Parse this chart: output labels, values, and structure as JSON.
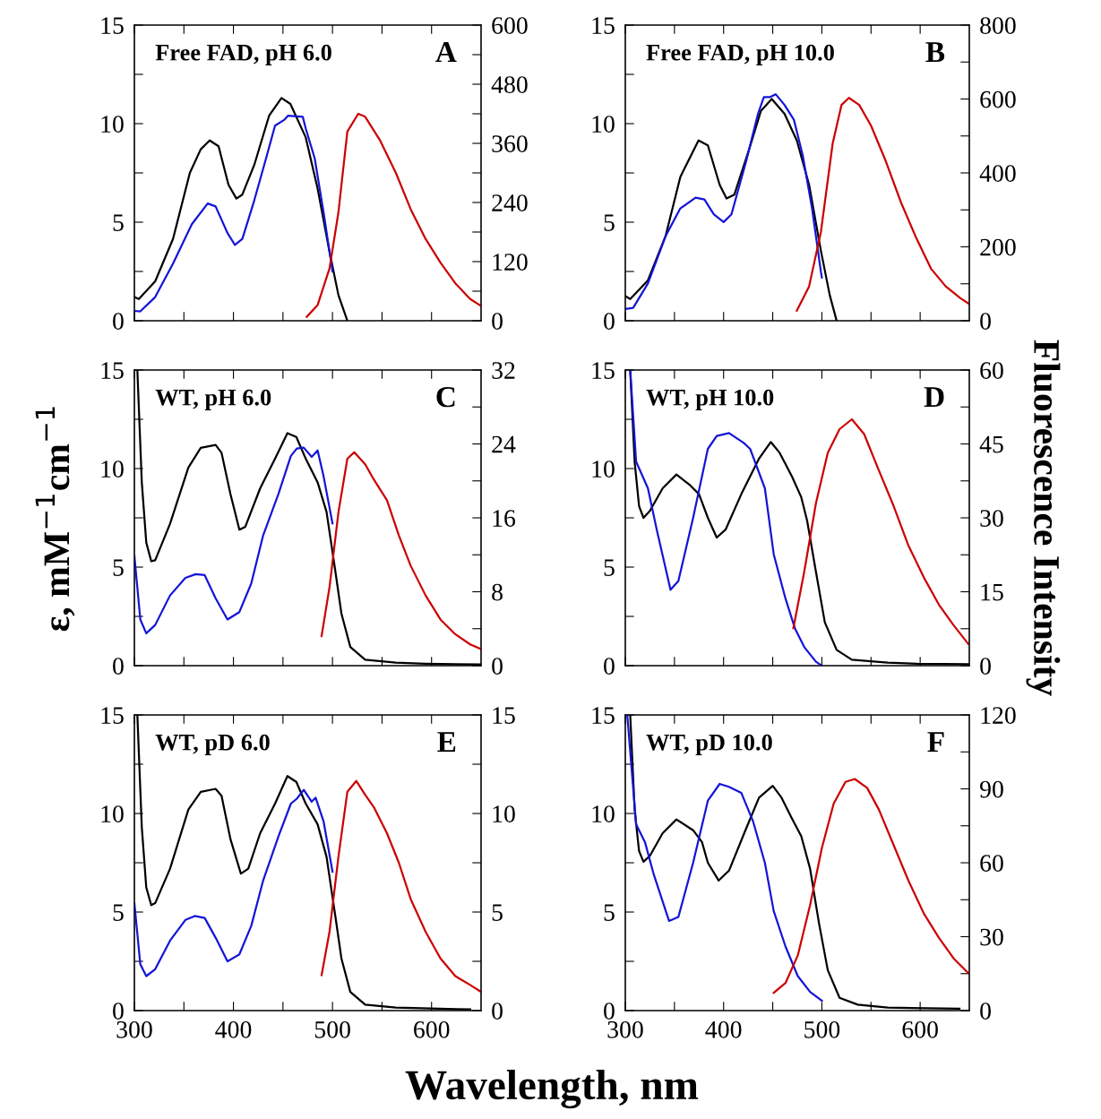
{
  "chart_data": [
    {
      "type": "line",
      "annotations": [
        "Free FAD, pH 6.0",
        "A"
      ],
      "xlim": [
        300,
        650
      ],
      "ylim": [
        0,
        15
      ],
      "y2lim": [
        0,
        600
      ],
      "tick_labels": "y",
      "xticks": [
        300,
        {
          "value": 350,
          "label": null
        },
        400,
        {
          "value": 450,
          "label": null
        },
        500,
        {
          "value": 550,
          "label": null
        },
        600
      ],
      "yticks": [
        0,
        {
          "value": 2.5,
          "label": null
        },
        5,
        {
          "value": 7.5,
          "label": null
        },
        10,
        {
          "value": 12.5,
          "label": null
        },
        15
      ],
      "y2ticks": [
        0,
        {
          "value": 60,
          "label": null
        },
        120,
        {
          "value": 180,
          "label": null
        },
        240,
        {
          "value": 300,
          "label": null
        },
        360,
        {
          "value": 420,
          "label": null
        },
        480,
        {
          "value": 540,
          "label": null
        },
        600
      ],
      "series": [
        {
          "color": "#000000",
          "x": [
            300,
            304.5,
            321,
            339,
            356,
            367,
            376,
            385,
            395,
            403,
            409,
            421,
            436,
            448.5,
            457.5,
            473,
            485,
            497,
            506,
            515
          ],
          "values": [
            1.2,
            1.1,
            2.0,
            4.15,
            7.5,
            8.7,
            9.15,
            8.85,
            6.9,
            6.2,
            6.4,
            7.9,
            10.4,
            11.3,
            11.0,
            9.3,
            6.7,
            3.5,
            1.3,
            0
          ]
        },
        {
          "color": "#1414d8",
          "axis": "y2",
          "x": [
            300,
            306,
            321,
            339,
            358,
            374,
            382,
            394,
            401.5,
            409,
            421,
            433,
            442,
            451.5,
            455,
            470,
            473,
            482,
            491,
            500
          ],
          "values": [
            20,
            19,
            48,
            116,
            196,
            238,
            232,
            178,
            154,
            166,
            244,
            330,
            396,
            408,
            416,
            414,
            390,
            330,
            220,
            100
          ]
        },
        {
          "color": "#cc0000",
          "axis": "y2",
          "x": [
            474,
            485,
            497,
            506,
            515,
            526,
            533,
            548,
            564,
            579,
            594,
            609,
            624,
            639,
            650
          ],
          "values": [
            8,
            32,
            106,
            220,
            384,
            420,
            414,
            366,
            300,
            226,
            166,
            118,
            76,
            44,
            30
          ]
        }
      ]
    },
    {
      "type": "line",
      "annotations": [
        "Free FAD, pH 10.0",
        "B"
      ],
      "xlim": [
        300,
        650
      ],
      "ylim": [
        0,
        15
      ],
      "y2lim": [
        0,
        800
      ],
      "tick_labels": "y",
      "xticks": [
        300,
        {
          "value": 350,
          "label": null
        },
        400,
        {
          "value": 450,
          "label": null
        },
        500,
        {
          "value": 550,
          "label": null
        },
        600
      ],
      "yticks": [
        0,
        {
          "value": 2.5,
          "label": null
        },
        5,
        {
          "value": 7.5,
          "label": null
        },
        10,
        {
          "value": 12.5,
          "label": null
        },
        15
      ],
      "y2ticks": [
        0,
        {
          "value": 100,
          "label": null
        },
        200,
        {
          "value": 300,
          "label": null
        },
        400,
        {
          "value": 500,
          "label": null
        },
        600,
        {
          "value": 700,
          "label": null
        },
        800
      ],
      "series": [
        {
          "color": "#000000",
          "x": [
            300,
            305,
            323,
            341,
            356,
            374.5,
            384,
            396,
            403,
            411,
            426,
            438,
            449,
            462,
            474.5,
            487,
            499,
            508,
            515
          ],
          "values": [
            1.25,
            1.1,
            2.05,
            4.3,
            7.3,
            9.15,
            8.9,
            6.9,
            6.2,
            6.4,
            8.7,
            10.65,
            11.25,
            10.5,
            9.15,
            6.9,
            3.55,
            1.3,
            0
          ]
        },
        {
          "color": "#1414d8",
          "axis": "y2",
          "x": [
            300,
            308,
            323,
            341,
            356,
            371.5,
            380.5,
            390,
            400,
            408,
            423,
            435,
            441,
            447,
            453,
            462,
            471.5,
            480.5,
            490,
            499,
            500
          ],
          "values": [
            32,
            35,
            101,
            229,
            304,
            333,
            328,
            288,
            267,
            288,
            432,
            560,
            605,
            605,
            613,
            584,
            544,
            448,
            304,
            133,
            117
          ]
        },
        {
          "color": "#cc0000",
          "axis": "y2",
          "x": [
            474.5,
            487,
            499,
            511,
            520,
            527.5,
            538,
            550,
            565,
            580.5,
            596,
            611,
            626,
            641,
            650
          ],
          "values": [
            27,
            93,
            240,
            480,
            584,
            603,
            584,
            528,
            432,
            320,
            224,
            141,
            93,
            61,
            45
          ]
        }
      ]
    },
    {
      "type": "line",
      "annotations": [
        "WT, pH 6.0",
        "C"
      ],
      "ylabel": "ε, mM$^{−1}$cm$^{−1}$",
      "xlim": [
        300,
        650
      ],
      "ylim": [
        0,
        15
      ],
      "y2lim": [
        0,
        32
      ],
      "tick_labels": "y",
      "xticks": [
        300,
        {
          "value": 350,
          "label": null
        },
        400,
        {
          "value": 450,
          "label": null
        },
        500,
        {
          "value": 550,
          "label": null
        },
        600
      ],
      "yticks": [
        0,
        {
          "value": 2.5,
          "label": null
        },
        5,
        {
          "value": 7.5,
          "label": null
        },
        10,
        {
          "value": 12.5,
          "label": null
        },
        15
      ],
      "y2ticks": [
        0,
        {
          "value": 4,
          "label": null
        },
        8,
        {
          "value": 12,
          "label": null
        },
        16,
        {
          "value": 20,
          "label": null
        },
        24,
        {
          "value": 28,
          "label": null
        },
        32
      ],
      "series": [
        {
          "color": "#000000",
          "x": [
            303,
            307.5,
            312,
            317,
            321,
            336,
            354.5,
            367,
            382,
            388,
            397,
            406,
            412,
            427,
            442,
            454.5,
            463.5,
            473,
            485,
            494,
            503,
            509,
            518,
            533,
            564,
            594,
            650
          ],
          "values": [
            15,
            9.3,
            6.25,
            5.3,
            5.35,
            7.2,
            10.05,
            11.05,
            11.2,
            10.8,
            8.7,
            6.9,
            7.05,
            9.0,
            10.5,
            11.8,
            11.6,
            10.5,
            9.3,
            7.8,
            4.75,
            2.65,
            0.95,
            0.3,
            0.15,
            0.1,
            0.06
          ]
        },
        {
          "color": "#1414d8",
          "axis": "y2",
          "x": [
            300,
            306,
            312,
            321,
            336,
            351.5,
            362,
            371,
            382,
            394,
            406,
            418,
            430,
            445.5,
            458,
            464,
            471,
            479,
            485,
            491,
            500
          ],
          "values": [
            11.9,
            5.0,
            3.5,
            4.4,
            7.6,
            9.5,
            9.9,
            9.8,
            7.3,
            5.0,
            5.8,
            8.9,
            14.1,
            18.6,
            22.7,
            23.5,
            23.6,
            22.6,
            23.3,
            20.5,
            15.4
          ]
        },
        {
          "color": "#cc0000",
          "axis": "y2",
          "x": [
            489,
            497,
            506,
            515,
            522,
            533,
            542,
            555,
            567,
            579,
            594,
            609,
            624,
            639,
            650
          ],
          "values": [
            3.2,
            8.5,
            16.6,
            22.4,
            23.1,
            21.8,
            20.1,
            17.9,
            14.1,
            10.8,
            7.6,
            5.0,
            3.4,
            2.3,
            1.8
          ]
        }
      ]
    },
    {
      "type": "line",
      "annotations": [
        "WT, pH 10.0",
        "D"
      ],
      "y2label": "Fluorescence Intensity",
      "xlim": [
        300,
        650
      ],
      "ylim": [
        0,
        15
      ],
      "y2lim": [
        0,
        60
      ],
      "tick_labels": "y",
      "xticks": [
        300,
        {
          "value": 350,
          "label": null
        },
        400,
        {
          "value": 450,
          "label": null
        },
        500,
        {
          "value": 550,
          "label": null
        },
        600
      ],
      "yticks": [
        0,
        {
          "value": 2.5,
          "label": null
        },
        5,
        {
          "value": 7.5,
          "label": null
        },
        10,
        {
          "value": 12.5,
          "label": null
        },
        15
      ],
      "y2ticks": [
        0,
        {
          "value": 7.5,
          "label": null
        },
        15,
        {
          "value": 22.5,
          "label": null
        },
        30,
        {
          "value": 37.5,
          "label": null
        },
        45,
        {
          "value": 52.5,
          "label": null
        },
        60
      ],
      "series": [
        {
          "color": "#000000",
          "x": [
            305,
            309.5,
            314,
            318.5,
            325,
            338,
            352,
            366,
            375,
            384,
            393,
            402,
            418,
            436,
            448,
            457,
            469.5,
            479,
            485,
            494,
            503,
            515,
            530.5,
            567,
            597.5,
            649
          ],
          "values": [
            15,
            10.35,
            8.1,
            7.5,
            7.85,
            9.0,
            9.7,
            9.15,
            8.7,
            7.5,
            6.5,
            6.9,
            8.7,
            10.5,
            11.35,
            10.8,
            9.6,
            8.55,
            7.35,
            4.75,
            2.2,
            0.8,
            0.3,
            0.15,
            0.1,
            0.08
          ]
        },
        {
          "color": "#1414d8",
          "axis": "y2",
          "x": [
            305,
            311,
            323,
            332,
            346,
            354,
            369,
            384,
            393,
            405.5,
            420.5,
            427,
            442,
            451,
            463,
            472.5,
            482,
            494,
            500
          ],
          "values": [
            60,
            41.4,
            36,
            27.6,
            15.4,
            17.2,
            30,
            44,
            46.6,
            47.2,
            45.2,
            44,
            36,
            22.6,
            13.6,
            7.6,
            3.8,
            0.8,
            0
          ]
        },
        {
          "color": "#cc0000",
          "axis": "y2",
          "x": [
            471,
            482,
            494,
            506,
            518,
            530.5,
            543,
            558,
            573,
            588,
            604,
            619,
            634,
            649
          ],
          "values": [
            7.6,
            19,
            33,
            43.2,
            48,
            50,
            47,
            39.6,
            32.4,
            24.4,
            17.8,
            12.4,
            8.2,
            4.4
          ]
        }
      ]
    },
    {
      "type": "line",
      "annotations": [
        "WT, pD 6.0",
        "E"
      ],
      "xlabel": "Wavelength, nm",
      "xlim": [
        300,
        650
      ],
      "ylim": [
        0,
        15
      ],
      "y2lim": [
        0,
        15
      ],
      "xticks": [
        300,
        {
          "value": 350,
          "label": null
        },
        400,
        {
          "value": 450,
          "label": null
        },
        500,
        {
          "value": 550,
          "label": null
        },
        600
      ],
      "yticks": [
        0,
        {
          "value": 2.5,
          "label": null
        },
        5,
        {
          "value": 7.5,
          "label": null
        },
        10,
        {
          "value": 12.5,
          "label": null
        },
        15
      ],
      "y2ticks": [
        0,
        {
          "value": 2.5,
          "label": null
        },
        5,
        {
          "value": 7.5,
          "label": null
        },
        10,
        {
          "value": 12.5,
          "label": null
        },
        15
      ],
      "series": [
        {
          "color": "#000000",
          "x": [
            303,
            307.5,
            312,
            317,
            321,
            336,
            354.5,
            367,
            382,
            388,
            397,
            407.5,
            415,
            427,
            442,
            454.5,
            463.5,
            473,
            485,
            494,
            503,
            509,
            518,
            533,
            564,
            639
          ],
          "values": [
            15,
            9.3,
            6.25,
            5.35,
            5.45,
            7.2,
            10.2,
            11.1,
            11.25,
            10.9,
            8.7,
            6.95,
            7.2,
            9.0,
            10.5,
            11.9,
            11.6,
            10.5,
            9.45,
            7.8,
            4.75,
            2.65,
            0.95,
            0.3,
            0.15,
            0.06
          ]
        },
        {
          "color": "#1414d8",
          "axis": "y2",
          "x": [
            300,
            306,
            312,
            321,
            336,
            351.5,
            361,
            371,
            382,
            394,
            406,
            418,
            430,
            445.5,
            458,
            464,
            471,
            479,
            483,
            491,
            500
          ],
          "values": [
            5.45,
            2.35,
            1.75,
            2.1,
            3.55,
            4.6,
            4.8,
            4.7,
            3.7,
            2.5,
            2.85,
            4.3,
            6.6,
            8.85,
            10.5,
            10.75,
            11.2,
            10.6,
            10.8,
            9.6,
            7.05
          ]
        },
        {
          "color": "#cc0000",
          "axis": "y2",
          "x": [
            489,
            497,
            506,
            515,
            524,
            533,
            542,
            555,
            567,
            579,
            594,
            609,
            624,
            639,
            650
          ],
          "values": [
            1.8,
            4.0,
            7.8,
            11.1,
            11.65,
            10.95,
            10.3,
            9.0,
            7.5,
            5.65,
            4.0,
            2.65,
            1.75,
            1.3,
            0.95
          ]
        }
      ]
    },
    {
      "type": "line",
      "annotations": [
        "WT, pD 10.0",
        "F"
      ],
      "xlim": [
        300,
        650
      ],
      "ylim": [
        0,
        15
      ],
      "y2lim": [
        0,
        120
      ],
      "xticks": [
        300,
        {
          "value": 350,
          "label": null
        },
        400,
        {
          "value": 450,
          "label": null
        },
        500,
        {
          "value": 550,
          "label": null
        },
        600
      ],
      "yticks": [
        0,
        {
          "value": 2.5,
          "label": null
        },
        5,
        {
          "value": 7.5,
          "label": null
        },
        10,
        {
          "value": 12.5,
          "label": null
        },
        15
      ],
      "y2ticks": [
        0,
        {
          "value": 15,
          "label": null
        },
        30,
        {
          "value": 45,
          "label": null
        },
        60,
        {
          "value": 75,
          "label": null
        },
        90,
        {
          "value": 105,
          "label": null
        },
        120
      ],
      "series": [
        {
          "color": "#000000",
          "x": [
            305,
            309.5,
            314,
            318.5,
            325,
            338,
            352,
            369,
            378,
            384,
            395,
            405.5,
            421,
            436,
            450,
            459,
            469.5,
            479,
            488,
            497,
            506,
            518,
            536.5,
            567,
            640
          ],
          "values": [
            15,
            10.2,
            8.1,
            7.55,
            7.85,
            9.0,
            9.7,
            9.15,
            8.55,
            7.5,
            6.6,
            7.1,
            9.0,
            10.8,
            11.4,
            10.8,
            9.75,
            8.85,
            7.2,
            4.45,
            2.05,
            0.65,
            0.3,
            0.15,
            0.1
          ]
        },
        {
          "color": "#1414d8",
          "axis": "y2",
          "x": [
            302,
            311,
            320,
            329,
            344.5,
            354,
            369,
            384,
            396,
            405.5,
            418,
            430,
            442,
            451,
            463,
            475.5,
            488,
            500
          ],
          "values": [
            120,
            75.6,
            68.4,
            55.2,
            36.4,
            38,
            60,
            85.2,
            92,
            90.8,
            88.4,
            76.8,
            60,
            40.4,
            26,
            14,
            7.6,
            4
          ]
        },
        {
          "color": "#cc0000",
          "axis": "y2",
          "x": [
            451,
            463,
            475.5,
            488,
            500,
            512,
            524,
            533.5,
            546,
            558,
            573,
            588,
            604,
            619,
            634,
            649
          ],
          "values": [
            7.2,
            11.2,
            22.4,
            42.8,
            66,
            84,
            92.8,
            94,
            90.4,
            81.6,
            67.2,
            52.8,
            39.2,
            29.6,
            21.2,
            15.2
          ]
        }
      ]
    }
  ]
}
